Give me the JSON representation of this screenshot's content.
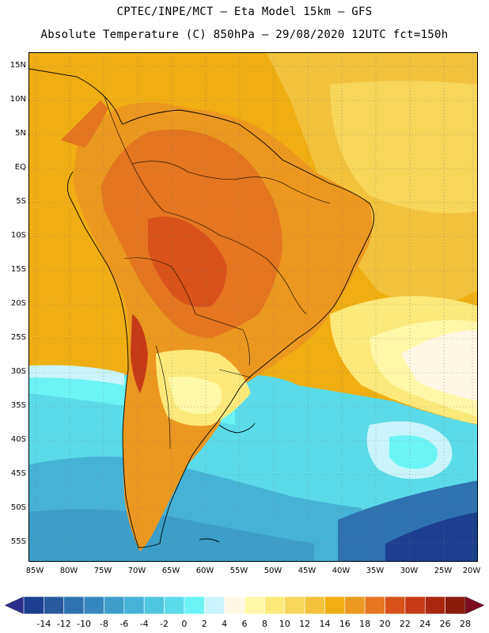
{
  "title_line1": "CPTEC/INPE/MCT –  Eta Model 15km – GFS",
  "title_line2": "Absolute Temperature (C) 850hPa – 29/08/2020 12UTC fct=150h",
  "lat_labels": [
    "15N",
    "10N",
    "5N",
    "EQ",
    "5S",
    "10S",
    "15S",
    "20S",
    "25S",
    "30S",
    "35S",
    "40S",
    "45S",
    "50S",
    "55S"
  ],
  "lon_labels": [
    "85W",
    "80W",
    "75W",
    "70W",
    "65W",
    "60W",
    "55W",
    "50W",
    "45W",
    "40W",
    "35W",
    "30W",
    "25W",
    "20W"
  ],
  "colorbar": {
    "labels": [
      "-14",
      "-12",
      "-10",
      "-8",
      "-6",
      "-4",
      "-2",
      "0",
      "2",
      "4",
      "6",
      "8",
      "10",
      "12",
      "14",
      "16",
      "18",
      "20",
      "22",
      "24",
      "26",
      "28"
    ],
    "colors": [
      "#1c3f8f",
      "#2a5a9e",
      "#2f72b0",
      "#3587be",
      "#3c9ec9",
      "#45b3d6",
      "#4fc6e0",
      "#5bdbe9",
      "#6cf3f6",
      "#c9f4fb",
      "#fff7e6",
      "#fff8a8",
      "#fde97a",
      "#f7d65a",
      "#f2c23d",
      "#efae12",
      "#eb9820",
      "#e5751e",
      "#d8521a",
      "#c63b16",
      "#a9270f",
      "#8b1b0b"
    ],
    "low_color": "#2b2f8a",
    "high_color": "#7b0a1f"
  }
}
